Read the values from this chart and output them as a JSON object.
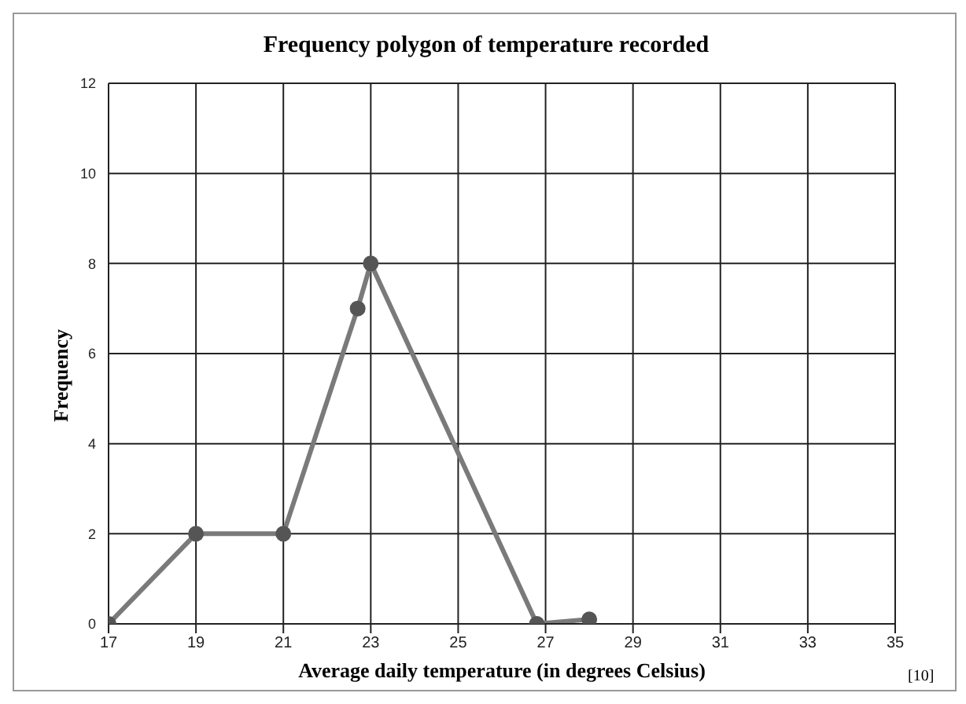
{
  "chart_data": {
    "type": "line",
    "title": "Frequency polygon of temperature recorded",
    "xlabel": "Average daily temperature (in degrees Celsius)",
    "ylabel": "Frequency",
    "x": [
      17,
      19,
      21,
      22.7,
      23,
      26.8,
      28
    ],
    "series": [
      {
        "color": "#7a7a7a",
        "values": [
          0,
          2,
          2,
          7,
          8,
          0,
          0.1
        ]
      }
    ],
    "xlim": [
      17,
      35
    ],
    "xticks": [
      17,
      19,
      21,
      23,
      25,
      27,
      29,
      31,
      33,
      35
    ],
    "ylim": [
      0,
      12
    ],
    "yticks": [
      0,
      2,
      4,
      6,
      8,
      10,
      12
    ],
    "grid": true,
    "legend": false,
    "marker": "circle",
    "line_style": "solid",
    "annotations": [
      "[10]"
    ]
  }
}
